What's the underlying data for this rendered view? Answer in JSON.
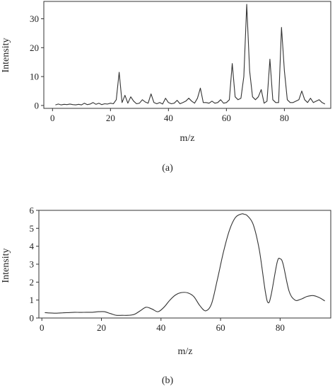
{
  "chart_data": [
    {
      "type": "line",
      "caption": "(a)",
      "xlabel": "m/z",
      "ylabel": "Intensity",
      "xlim": [
        -3,
        96
      ],
      "ylim": [
        -1,
        36
      ],
      "xticks": [
        0,
        20,
        40,
        60,
        80
      ],
      "yticks": [
        0,
        10,
        20,
        30
      ],
      "grid": false,
      "series": [
        {
          "x": [
            1,
            2,
            3,
            4,
            5,
            6,
            7,
            8,
            9,
            10,
            11,
            12,
            13,
            14,
            15,
            16,
            17,
            18,
            19,
            20,
            21,
            22,
            23,
            24,
            25,
            26,
            27,
            28,
            29,
            30,
            31,
            32,
            33,
            34,
            35,
            36,
            37,
            38,
            39,
            40,
            41,
            42,
            43,
            44,
            45,
            46,
            47,
            48,
            49,
            50,
            51,
            52,
            53,
            54,
            55,
            56,
            57,
            58,
            59,
            60,
            61,
            62,
            63,
            64,
            65,
            66,
            67,
            68,
            69,
            70,
            71,
            72,
            73,
            74,
            75,
            76,
            77,
            78,
            79,
            80,
            81,
            82,
            83,
            84,
            85,
            86,
            87,
            88,
            89,
            90,
            91,
            92,
            93,
            94
          ],
          "y": [
            0.2,
            0.5,
            0.2,
            0.4,
            0.3,
            0.5,
            0.3,
            0.2,
            0.4,
            0.2,
            0.8,
            0.3,
            0.5,
            1.0,
            0.4,
            0.8,
            0.3,
            0.6,
            0.5,
            0.8,
            0.6,
            2.0,
            11.5,
            1.0,
            3.5,
            0.8,
            3.0,
            1.5,
            0.6,
            0.8,
            2.0,
            1.2,
            0.8,
            4.0,
            1.0,
            0.6,
            1.0,
            0.5,
            2.5,
            1.0,
            0.6,
            0.8,
            1.8,
            0.6,
            1.0,
            1.5,
            2.5,
            1.5,
            0.8,
            2.5,
            6.0,
            1.0,
            1.0,
            0.8,
            1.5,
            0.8,
            1.0,
            2.0,
            0.8,
            1.0,
            2.0,
            14.5,
            3.0,
            2.0,
            2.5,
            10.0,
            35.0,
            12.0,
            3.0,
            2.0,
            3.0,
            5.5,
            0.8,
            1.5,
            16.0,
            2.0,
            1.0,
            1.0,
            27.0,
            12.0,
            2.0,
            1.0,
            1.0,
            1.5,
            2.0,
            5.0,
            2.0,
            1.0,
            2.5,
            1.0,
            1.5,
            2.0,
            1.0,
            0.5
          ]
        }
      ]
    },
    {
      "type": "line",
      "caption": "(b)",
      "xlabel": "m/z",
      "ylabel": "Intensity",
      "xlim": [
        -1,
        97
      ],
      "ylim": [
        0,
        6
      ],
      "xticks": [
        0,
        20,
        40,
        60,
        80
      ],
      "yticks": [
        0,
        1,
        2,
        3,
        4,
        5,
        6
      ],
      "grid": false,
      "series": [
        {
          "x": [
            1,
            3,
            5,
            7,
            9,
            11,
            13,
            15,
            17,
            19,
            21,
            23,
            25,
            27,
            29,
            31,
            33,
            35,
            37,
            39,
            41,
            43,
            45,
            47,
            49,
            51,
            53,
            55,
            57,
            59,
            61,
            63,
            65,
            67,
            68,
            69,
            71,
            73,
            75,
            76,
            77,
            79,
            80,
            81,
            83,
            85,
            87,
            89,
            91,
            93,
            95
          ],
          "y": [
            0.3,
            0.28,
            0.27,
            0.29,
            0.3,
            0.32,
            0.31,
            0.32,
            0.32,
            0.35,
            0.35,
            0.25,
            0.15,
            0.15,
            0.15,
            0.2,
            0.4,
            0.6,
            0.5,
            0.35,
            0.6,
            1.0,
            1.3,
            1.42,
            1.4,
            1.2,
            0.7,
            0.4,
            0.8,
            2.2,
            3.7,
            4.9,
            5.6,
            5.8,
            5.78,
            5.7,
            5.2,
            3.8,
            1.5,
            0.85,
            1.3,
            3.1,
            3.3,
            3.0,
            1.5,
            1.0,
            1.05,
            1.2,
            1.25,
            1.15,
            0.95
          ]
        }
      ]
    }
  ]
}
